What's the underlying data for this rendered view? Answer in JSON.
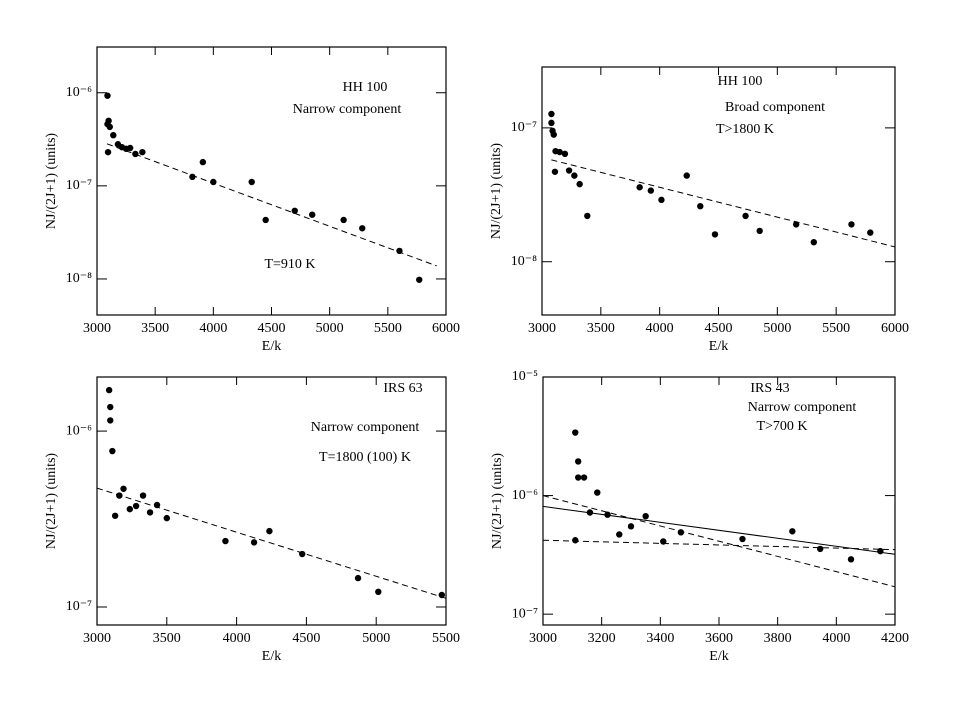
{
  "chart_data": [
    {
      "type": "scatter",
      "log_y": true,
      "color": "#000000",
      "annotations": [
        "HH 100",
        "Narrow component",
        "T=910 K"
      ],
      "x_label": "E/k",
      "y_label": "NJ/(2J+1) (units)",
      "x": [
        3090,
        3090,
        3100,
        3110,
        3095,
        3140,
        3180,
        3215,
        3250,
        3285,
        3330,
        3390,
        3820,
        3910,
        4000,
        4330,
        4450,
        4700,
        4850,
        5120,
        5280,
        5600,
        5770
      ],
      "values": [
        9.3e-07,
        4.6e-07,
        5e-07,
        4.3e-07,
        2.3e-07,
        3.5e-07,
        2.8e-07,
        2.6e-07,
        2.5e-07,
        2.55e-07,
        2.2e-07,
        2.3e-07,
        1.25e-07,
        1.8e-07,
        1.1e-07,
        1.1e-07,
        4.3e-08,
        5.4e-08,
        4.9e-08,
        4.3e-08,
        3.5e-08,
        2e-08,
        9.8e-09
      ],
      "fits": [
        {
          "style": "dashed",
          "x": [
            3086,
            5920
          ],
          "values": [
            2.83e-07,
            1.38e-08
          ]
        }
      ],
      "xlim": [
        3000,
        6000
      ],
      "ylim": [
        4.1e-09,
        3.1e-06
      ],
      "xticks": [
        3000,
        3500,
        4000,
        4500,
        5000,
        5500,
        6000
      ],
      "yticks": [
        {
          "value": 1e-08,
          "label": "10⁻⁸"
        },
        {
          "value": 1e-07,
          "label": "10⁻⁷"
        },
        {
          "value": 1e-06,
          "label": "10⁻⁶"
        }
      ]
    },
    {
      "type": "scatter",
      "log_y": true,
      "color": "#000000",
      "annotations": [
        "HH 100",
        "Broad component",
        "T>1800 K"
      ],
      "x_label": "E/k",
      "y_label": "NJ/(2J+1) (units)",
      "x": [
        3080,
        3080,
        3090,
        3100,
        3115,
        3110,
        3150,
        3195,
        3230,
        3275,
        3320,
        3385,
        3830,
        3925,
        4015,
        4230,
        4345,
        4470,
        4730,
        4850,
        5160,
        5310,
        5630,
        5790
      ],
      "values": [
        1.27e-07,
        1.09e-07,
        9.5e-08,
        8.9e-08,
        6.7e-08,
        4.7e-08,
        6.6e-08,
        6.4e-08,
        4.8e-08,
        4.4e-08,
        3.8e-08,
        2.2e-08,
        3.6e-08,
        3.4e-08,
        2.9e-08,
        4.4e-08,
        2.6e-08,
        1.6e-08,
        2.2e-08,
        1.7e-08,
        1.9e-08,
        1.4e-08,
        1.9e-08,
        1.65e-08
      ],
      "fits": [
        {
          "style": "dashed",
          "x": [
            3080,
            6000
          ],
          "values": [
            5.77e-08,
            1.29e-08
          ]
        }
      ],
      "xlim": [
        3000,
        6000
      ],
      "ylim": [
        4e-09,
        2.85e-07
      ],
      "xticks": [
        3000,
        3500,
        4000,
        4500,
        5000,
        5500,
        6000
      ],
      "yticks": [
        {
          "value": 1e-08,
          "label": "10⁻⁸"
        },
        {
          "value": 1e-07,
          "label": "10⁻⁷"
        }
      ]
    },
    {
      "type": "scatter",
      "log_y": true,
      "color": "#000000",
      "annotations": [
        "IRS 63",
        "Narrow component",
        "T=1800 (100) K"
      ],
      "x_label": "E/k",
      "y_label": "NJ/(2J+1) (units)",
      "x": [
        3087,
        3095,
        3095,
        3110,
        3130,
        3160,
        3190,
        3235,
        3280,
        3330,
        3380,
        3430,
        3500,
        3920,
        4125,
        4235,
        4470,
        4870,
        5015,
        5470
      ],
      "values": [
        1.71e-06,
        1.37e-06,
        1.15e-06,
        7.7e-07,
        3.3e-07,
        4.3e-07,
        4.7e-07,
        3.6e-07,
        3.75e-07,
        4.3e-07,
        3.45e-07,
        3.8e-07,
        3.2e-07,
        2.37e-07,
        2.33e-07,
        2.7e-07,
        2e-07,
        1.46e-07,
        1.22e-07,
        1.17e-07
      ],
      "fits": [
        {
          "style": "dashed",
          "x": [
            3000,
            5500
          ],
          "values": [
            4.74e-07,
            1.12e-07
          ]
        }
      ],
      "xlim": [
        3000,
        5500
      ],
      "ylim": [
        7.9e-08,
        2.03e-06
      ],
      "xticks": [
        3000,
        3500,
        4000,
        4500,
        5000,
        5500
      ],
      "yticks": [
        {
          "value": 1e-07,
          "label": "10⁻⁷"
        },
        {
          "value": 1e-06,
          "label": "10⁻⁶"
        }
      ]
    },
    {
      "type": "scatter",
      "log_y": true,
      "color": "#000000",
      "annotations": [
        "IRS 43",
        "Narrow component",
        "T>700 K"
      ],
      "x_label": "E/k",
      "y_label": "NJ/(2J+1) (units)",
      "x": [
        3110,
        3120,
        3120,
        3140,
        3185,
        3160,
        3220,
        3110,
        3260,
        3300,
        3350,
        3410,
        3470,
        3680,
        3850,
        3945,
        4050,
        4150
      ],
      "values": [
        3.4e-06,
        1.94e-06,
        1.42e-06,
        1.42e-06,
        1.06e-06,
        7.2e-07,
        6.9e-07,
        4.2e-07,
        4.7e-07,
        5.5e-07,
        6.7e-07,
        4.1e-07,
        4.9e-07,
        4.3e-07,
        5e-07,
        3.55e-07,
        2.9e-07,
        3.4e-07
      ],
      "fits": [
        {
          "style": "solid",
          "x": [
            3000,
            4200
          ],
          "values": [
            8.1e-07,
            3.2e-07
          ]
        },
        {
          "style": "dashed",
          "x": [
            3000,
            4200
          ],
          "values": [
            1e-06,
            1.7e-07
          ]
        },
        {
          "style": "dashed",
          "x": [
            3000,
            4200
          ],
          "values": [
            4.2e-07,
            3.5e-07
          ]
        }
      ],
      "xlim": [
        3000,
        4200
      ],
      "ylim": [
        8.1e-08,
        1e-05
      ],
      "xticks": [
        3000,
        3200,
        3400,
        3600,
        3800,
        4000,
        4200
      ],
      "yticks": [
        {
          "value": 1e-07,
          "label": "10⁻⁷"
        },
        {
          "value": 1e-06,
          "label": "10⁻⁶"
        },
        {
          "value": 1e-05,
          "label": "10⁻⁵"
        }
      ]
    }
  ]
}
